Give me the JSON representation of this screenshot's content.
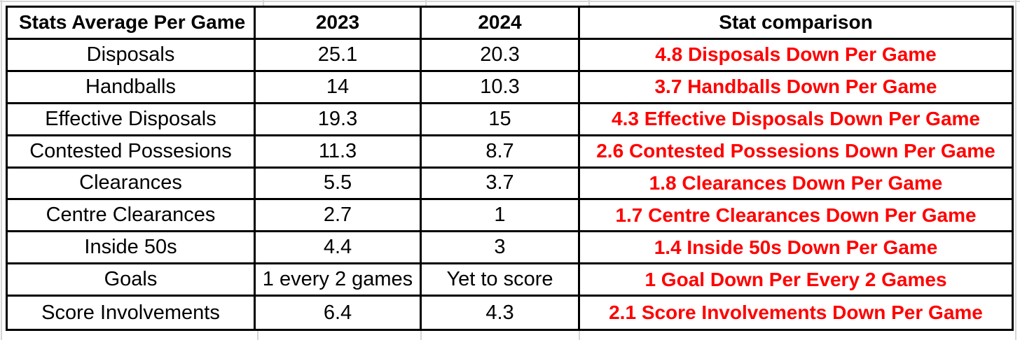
{
  "colors": {
    "background": "#ffffff",
    "table_border": "#000000",
    "text": "#000000",
    "comparison_text": "#ff0000",
    "gridline": "#d6d6d6"
  },
  "chart_data": {
    "type": "table",
    "title": "Stats Average Per Game",
    "columns": [
      "Stats Average Per Game",
      "2023",
      "2024",
      "Stat comparison"
    ],
    "rows": [
      {
        "stat": "Disposals",
        "y2023": "25.1",
        "y2024": "20.3",
        "comparison": "4.8 Disposals Down Per Game"
      },
      {
        "stat": "Handballs",
        "y2023": "14",
        "y2024": "10.3",
        "comparison": "3.7 Handballs Down Per Game"
      },
      {
        "stat": "Effective Disposals",
        "y2023": "19.3",
        "y2024": "15",
        "comparison": "4.3 Effective Disposals Down Per Game"
      },
      {
        "stat": "Contested Possesions",
        "y2023": "11.3",
        "y2024": "8.7",
        "comparison": "2.6 Contested Possesions Down Per Game"
      },
      {
        "stat": "Clearances",
        "y2023": "5.5",
        "y2024": "3.7",
        "comparison": "1.8 Clearances Down Per Game"
      },
      {
        "stat": "Centre Clearances",
        "y2023": "2.7",
        "y2024": "1",
        "comparison": "1.7 Centre Clearances Down Per Game"
      },
      {
        "stat": "Inside 50s",
        "y2023": "4.4",
        "y2024": "3",
        "comparison": "1.4 Inside 50s Down Per Game"
      },
      {
        "stat": "Goals",
        "y2023": "1 every 2 games",
        "y2024": "Yet to score",
        "comparison": "1 Goal Down Per Every 2 Games"
      },
      {
        "stat": "Score Involvements",
        "y2023": "6.4",
        "y2024": "4.3",
        "comparison": "2.1 Score Involvements Down Per Game"
      }
    ]
  }
}
